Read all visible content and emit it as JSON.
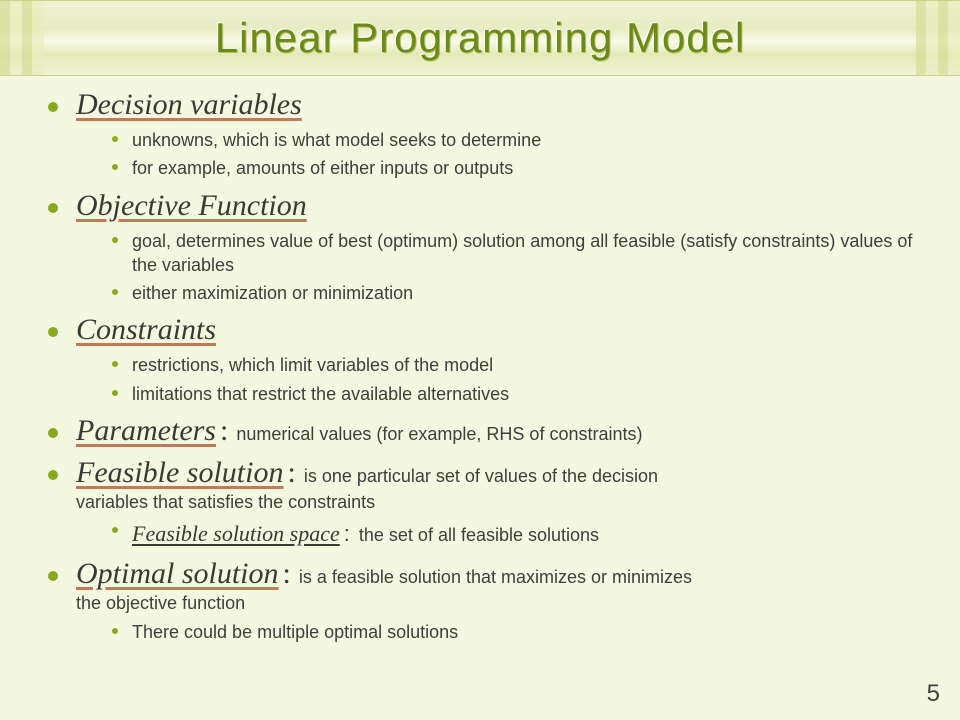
{
  "title": "Linear Programming Model",
  "page_number": "5",
  "colors": {
    "background": "#f5f8e0",
    "bullet": "#88aa1e",
    "title_text": "#6c8a1a",
    "underline": "#c27958",
    "body_text": "#3e3e3c"
  },
  "typography": {
    "title_fontsize": 42,
    "heading_fontsize": 30,
    "sub_fontsize": 18,
    "sub_italic_fontsize": 22,
    "title_font": "Trebuchet MS",
    "heading_font": "Georgia italic",
    "body_font": "Trebuchet MS"
  },
  "items": [
    {
      "head": "Decision variables",
      "subs": [
        "unknowns, which is what model seeks to determine",
        "for example, amounts of either inputs or outputs"
      ]
    },
    {
      "head": "Objective Function",
      "subs": [
        "goal, determines value of best (optimum) solution among all feasible (satisfy constraints) values of the variables",
        "either maximization or minimization"
      ]
    },
    {
      "head": "Constraints",
      "subs": [
        "restrictions, which limit  variables of the model",
        "limitations that restrict the available alternatives"
      ]
    },
    {
      "head": "Parameters",
      "tail": "numerical values (for example, RHS of constraints)"
    },
    {
      "head": "Feasible solution",
      "tail": "is one particular set of values of the decision",
      "tail2": "variables that satisfies the constraints",
      "sub_head": "Feasible solution space",
      "sub_tail": "the set of all feasible solutions"
    },
    {
      "head": "Optimal solution",
      "tail": "is a feasible solution that maximizes or minimizes",
      "tail2": "the objective function",
      "subs": [
        "There could be multiple optimal solutions"
      ]
    }
  ]
}
